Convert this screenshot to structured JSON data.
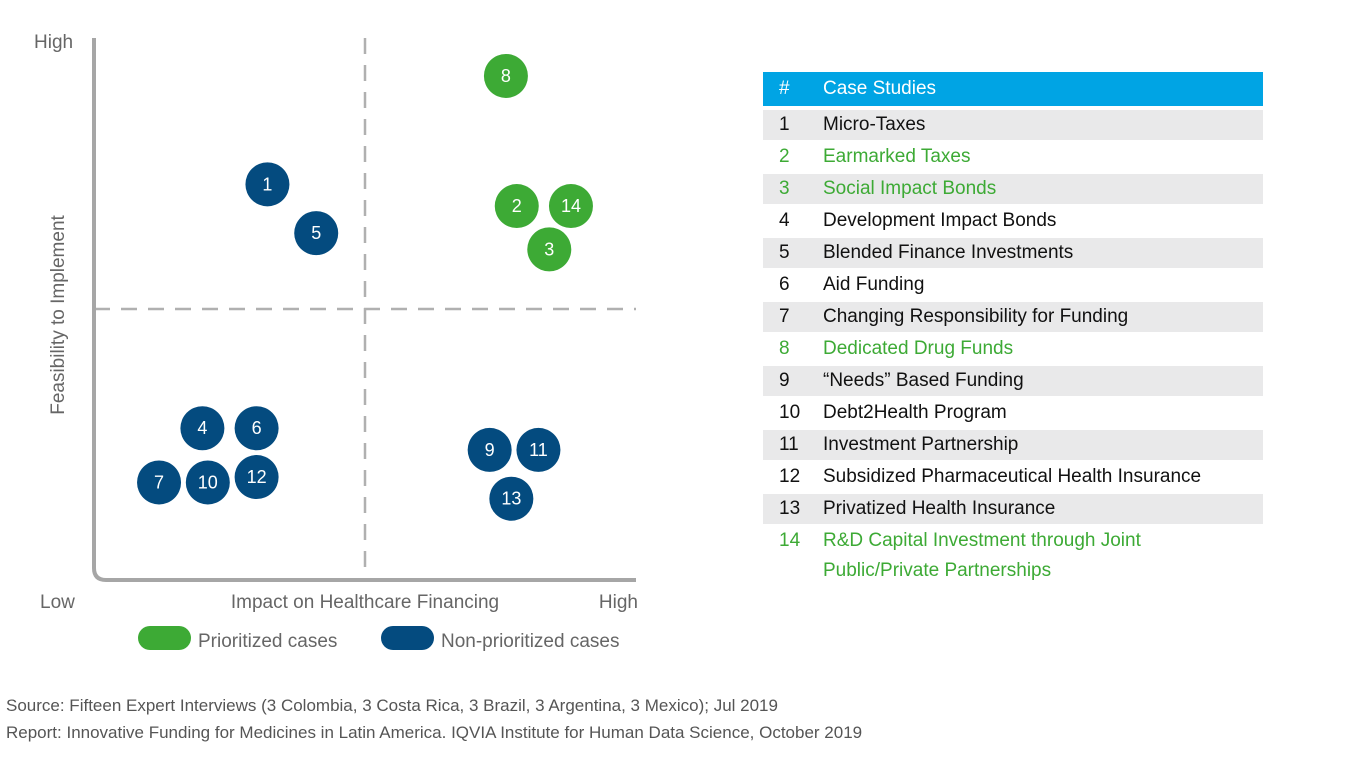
{
  "colors": {
    "prioritized": "#3daa35",
    "non_prioritized": "#044b7f",
    "header": "#00a4e4",
    "axis": "#a6a6a6",
    "divider": "#b0b0b0"
  },
  "chart_data": {
    "type": "scatter",
    "xlabel": "Impact on Healthcare Financing",
    "ylabel": "Feasibility to Implement",
    "x_low": "Low",
    "x_high": "High",
    "y_high": "High",
    "xlim": [
      0,
      100
    ],
    "ylim": [
      0,
      100
    ],
    "quadrant_divider": {
      "x": 50,
      "y": 50
    },
    "legend": [
      {
        "name": "Prioritized cases",
        "key": "prioritized"
      },
      {
        "name": "Non-prioritized cases",
        "key": "non_prioritized"
      }
    ],
    "legend_placement": "bottom",
    "points": [
      {
        "id": "1",
        "x": 32,
        "y": 73,
        "group": "non_prioritized"
      },
      {
        "id": "2",
        "x": 78,
        "y": 69,
        "group": "prioritized"
      },
      {
        "id": "3",
        "x": 84,
        "y": 61,
        "group": "prioritized"
      },
      {
        "id": "4",
        "x": 20,
        "y": 28,
        "group": "non_prioritized"
      },
      {
        "id": "5",
        "x": 41,
        "y": 64,
        "group": "non_prioritized"
      },
      {
        "id": "6",
        "x": 30,
        "y": 28,
        "group": "non_prioritized"
      },
      {
        "id": "7",
        "x": 12,
        "y": 18,
        "group": "non_prioritized"
      },
      {
        "id": "8",
        "x": 76,
        "y": 93,
        "group": "prioritized"
      },
      {
        "id": "9",
        "x": 73,
        "y": 24,
        "group": "non_prioritized"
      },
      {
        "id": "10",
        "x": 21,
        "y": 18,
        "group": "non_prioritized"
      },
      {
        "id": "11",
        "x": 82,
        "y": 24,
        "group": "non_prioritized"
      },
      {
        "id": "12",
        "x": 30,
        "y": 19,
        "group": "non_prioritized"
      },
      {
        "id": "13",
        "x": 77,
        "y": 15,
        "group": "non_prioritized"
      },
      {
        "id": "14",
        "x": 88,
        "y": 69,
        "group": "prioritized"
      }
    ]
  },
  "table": {
    "header_num": "#",
    "header_title": "Case Studies",
    "rows": [
      {
        "num": "1",
        "name": "Micro-Taxes",
        "group": "non_prioritized"
      },
      {
        "num": "2",
        "name": "Earmarked Taxes",
        "group": "prioritized"
      },
      {
        "num": "3",
        "name": "Social Impact Bonds",
        "group": "prioritized"
      },
      {
        "num": "4",
        "name": "Development Impact Bonds",
        "group": "non_prioritized"
      },
      {
        "num": "5",
        "name": "Blended Finance Investments",
        "group": "non_prioritized"
      },
      {
        "num": "6",
        "name": "Aid Funding",
        "group": "non_prioritized"
      },
      {
        "num": "7",
        "name": "Changing Responsibility for Funding",
        "group": "non_prioritized"
      },
      {
        "num": "8",
        "name": "Dedicated Drug Funds",
        "group": "prioritized"
      },
      {
        "num": "9",
        "name": "“Needs” Based Funding",
        "group": "non_prioritized"
      },
      {
        "num": "10",
        "name": "Debt2Health Program",
        "group": "non_prioritized"
      },
      {
        "num": "11",
        "name": "Investment Partnership",
        "group": "non_prioritized"
      },
      {
        "num": "12",
        "name": "Subsidized Pharmaceutical Health Insurance",
        "group": "non_prioritized"
      },
      {
        "num": "13",
        "name": "Privatized Health Insurance",
        "group": "non_prioritized"
      },
      {
        "num": "14",
        "name": "R&D Capital Investment through Joint Public/Private Partnerships",
        "group": "prioritized"
      }
    ]
  },
  "footer": {
    "source": "Source: Fifteen Expert Interviews (3 Colombia, 3 Costa Rica, 3 Brazil, 3 Argentina, 3 Mexico); Jul 2019",
    "report": "Report: Innovative Funding for Medicines in Latin America. IQVIA Institute for Human Data Science, October 2019"
  }
}
